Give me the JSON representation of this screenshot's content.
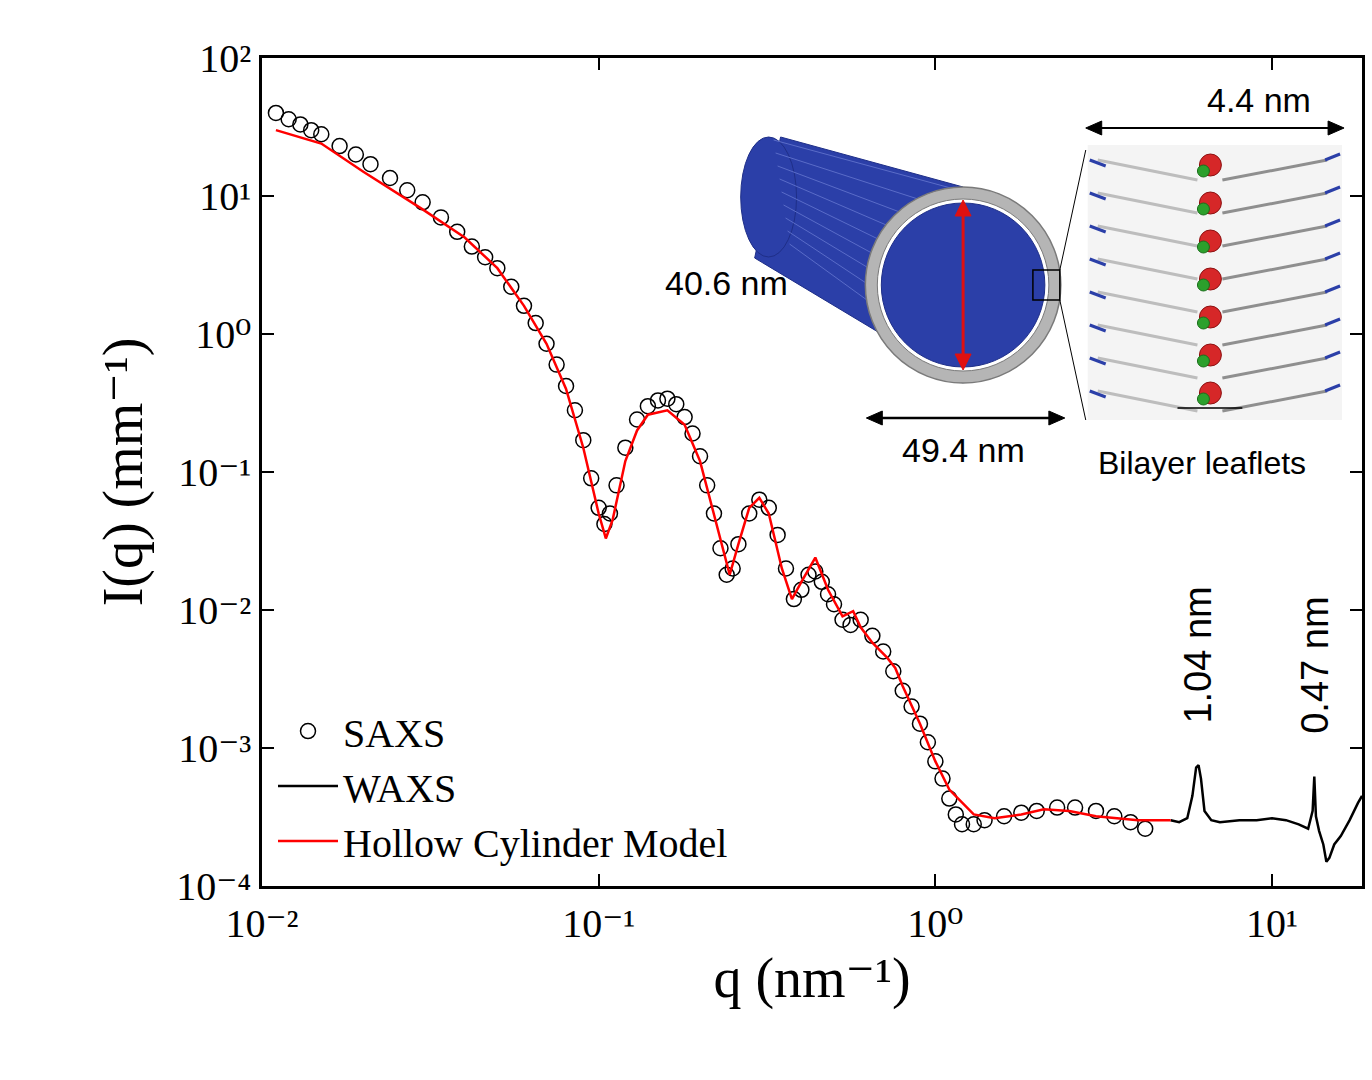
{
  "chart_data": {
    "type": "line",
    "x_label": "q (nm⁻¹)",
    "y_label": "I(q) (mm⁻¹)",
    "log": true,
    "grid": false,
    "legend": "lower left",
    "xlim": [
      0.01,
      18.5
    ],
    "ylim": [
      0.0001,
      100
    ],
    "xticks": [
      {
        "value": 0.01,
        "label": "10⁻²"
      },
      {
        "value": 0.1,
        "label": "10⁻¹"
      },
      {
        "value": 1,
        "label": "10⁰"
      },
      {
        "value": 10,
        "label": "10¹"
      }
    ],
    "yticks": [
      {
        "value": 0.0001,
        "label": "10⁻⁴"
      },
      {
        "value": 0.001,
        "label": "10⁻³"
      },
      {
        "value": 0.01,
        "label": "10⁻²"
      },
      {
        "value": 0.1,
        "label": "10⁻¹"
      },
      {
        "value": 1,
        "label": "10⁰"
      },
      {
        "value": 10,
        "label": "10¹"
      },
      {
        "value": 100,
        "label": "10²"
      }
    ],
    "series": [
      {
        "name": "SAXS",
        "type": "scatter",
        "marker": "open_circle",
        "color": "#000000",
        "x": [
          0.011,
          0.012,
          0.013,
          0.014,
          0.015,
          0.017,
          0.019,
          0.021,
          0.024,
          0.027,
          0.03,
          0.034,
          0.038,
          0.042,
          0.046,
          0.05,
          0.055,
          0.06,
          0.065,
          0.07,
          0.075,
          0.08,
          0.085,
          0.09,
          0.095,
          0.1,
          0.104,
          0.108,
          0.113,
          0.12,
          0.13,
          0.14,
          0.15,
          0.16,
          0.17,
          0.18,
          0.19,
          0.2,
          0.21,
          0.22,
          0.23,
          0.24,
          0.25,
          0.26,
          0.28,
          0.3,
          0.32,
          0.34,
          0.36,
          0.38,
          0.4,
          0.42,
          0.44,
          0.46,
          0.48,
          0.5,
          0.53,
          0.56,
          0.6,
          0.65,
          0.7,
          0.75,
          0.8,
          0.85,
          0.9,
          0.95,
          1.0,
          1.05,
          1.1,
          1.15,
          1.2,
          1.3,
          1.4,
          1.6,
          1.8,
          2.0,
          2.3,
          2.6,
          3.0,
          3.4,
          3.8,
          4.2
        ],
        "values": [
          40,
          36,
          33,
          30,
          28,
          23,
          20,
          17,
          13.5,
          11,
          9,
          7,
          5.5,
          4.3,
          3.6,
          3.0,
          2.2,
          1.6,
          1.2,
          0.85,
          0.6,
          0.42,
          0.28,
          0.17,
          0.09,
          0.055,
          0.042,
          0.05,
          0.08,
          0.15,
          0.24,
          0.3,
          0.33,
          0.34,
          0.31,
          0.25,
          0.19,
          0.13,
          0.08,
          0.05,
          0.028,
          0.018,
          0.02,
          0.03,
          0.05,
          0.063,
          0.055,
          0.035,
          0.02,
          0.012,
          0.014,
          0.018,
          0.019,
          0.016,
          0.013,
          0.011,
          0.0085,
          0.0078,
          0.0085,
          0.0065,
          0.005,
          0.0036,
          0.0026,
          0.002,
          0.0015,
          0.0011,
          0.0008,
          0.0006,
          0.00043,
          0.00033,
          0.00028,
          0.00028,
          0.0003,
          0.00032,
          0.00034,
          0.00035,
          0.00037,
          0.00037,
          0.00035,
          0.00032,
          0.00029,
          0.00026
        ]
      },
      {
        "name": "WAXS",
        "type": "line",
        "line_style": "solid",
        "color": "#000000",
        "x": [
          5.0,
          5.3,
          5.6,
          5.8,
          5.95,
          6.05,
          6.15,
          6.3,
          6.6,
          7,
          8,
          9,
          10,
          11,
          12,
          12.8,
          13.2,
          13.35,
          13.5,
          13.8,
          14.2,
          14.5,
          14.8,
          15.3,
          16,
          17,
          18,
          18.5
        ],
        "values": [
          0.0003,
          0.00029,
          0.00031,
          0.00045,
          0.00072,
          0.00075,
          0.0006,
          0.00035,
          0.0003,
          0.00029,
          0.0003,
          0.0003,
          0.00031,
          0.0003,
          0.00028,
          0.00026,
          0.00035,
          0.00062,
          0.00032,
          0.00025,
          0.0002,
          0.00015,
          0.00016,
          0.0002,
          0.00023,
          0.0003,
          0.0004,
          0.00045
        ]
      },
      {
        "name": "Hollow Cylinder Model",
        "type": "line",
        "line_style": "solid",
        "color": "#ff0000",
        "x": [
          0.011,
          0.015,
          0.02,
          0.03,
          0.04,
          0.05,
          0.06,
          0.07,
          0.08,
          0.09,
          0.1,
          0.105,
          0.11,
          0.12,
          0.13,
          0.14,
          0.16,
          0.18,
          0.2,
          0.22,
          0.24,
          0.245,
          0.26,
          0.28,
          0.3,
          0.32,
          0.35,
          0.375,
          0.4,
          0.44,
          0.48,
          0.53,
          0.57,
          0.6,
          0.65,
          0.72,
          0.76,
          0.8,
          0.9,
          1.0,
          1.1,
          1.3,
          1.5,
          1.8,
          2.1,
          2.5,
          3.0,
          4.0,
          5.0
        ],
        "values": [
          30,
          24,
          15,
          8,
          5,
          3.0,
          1.6,
          0.85,
          0.4,
          0.15,
          0.05,
          0.033,
          0.045,
          0.12,
          0.2,
          0.26,
          0.28,
          0.22,
          0.12,
          0.05,
          0.022,
          0.018,
          0.03,
          0.055,
          0.065,
          0.05,
          0.02,
          0.012,
          0.016,
          0.024,
          0.014,
          0.009,
          0.0098,
          0.0075,
          0.0058,
          0.0045,
          0.0038,
          0.0028,
          0.0015,
          0.0008,
          0.0005,
          0.00033,
          0.00031,
          0.00033,
          0.00036,
          0.00035,
          0.00032,
          0.0003,
          0.0003
        ]
      }
    ],
    "annotations": [
      {
        "text": "1.04 nm",
        "x": 6.04,
        "y": 0.0047
      },
      {
        "text": "0.47 nm",
        "x": 13.4,
        "y": 0.004
      }
    ],
    "inset": {
      "inner_diameter": "40.6 nm",
      "outer_diameter": "49.4 nm",
      "bilayer_thickness": "4.4 nm",
      "label": "Bilayer leaflets"
    }
  }
}
